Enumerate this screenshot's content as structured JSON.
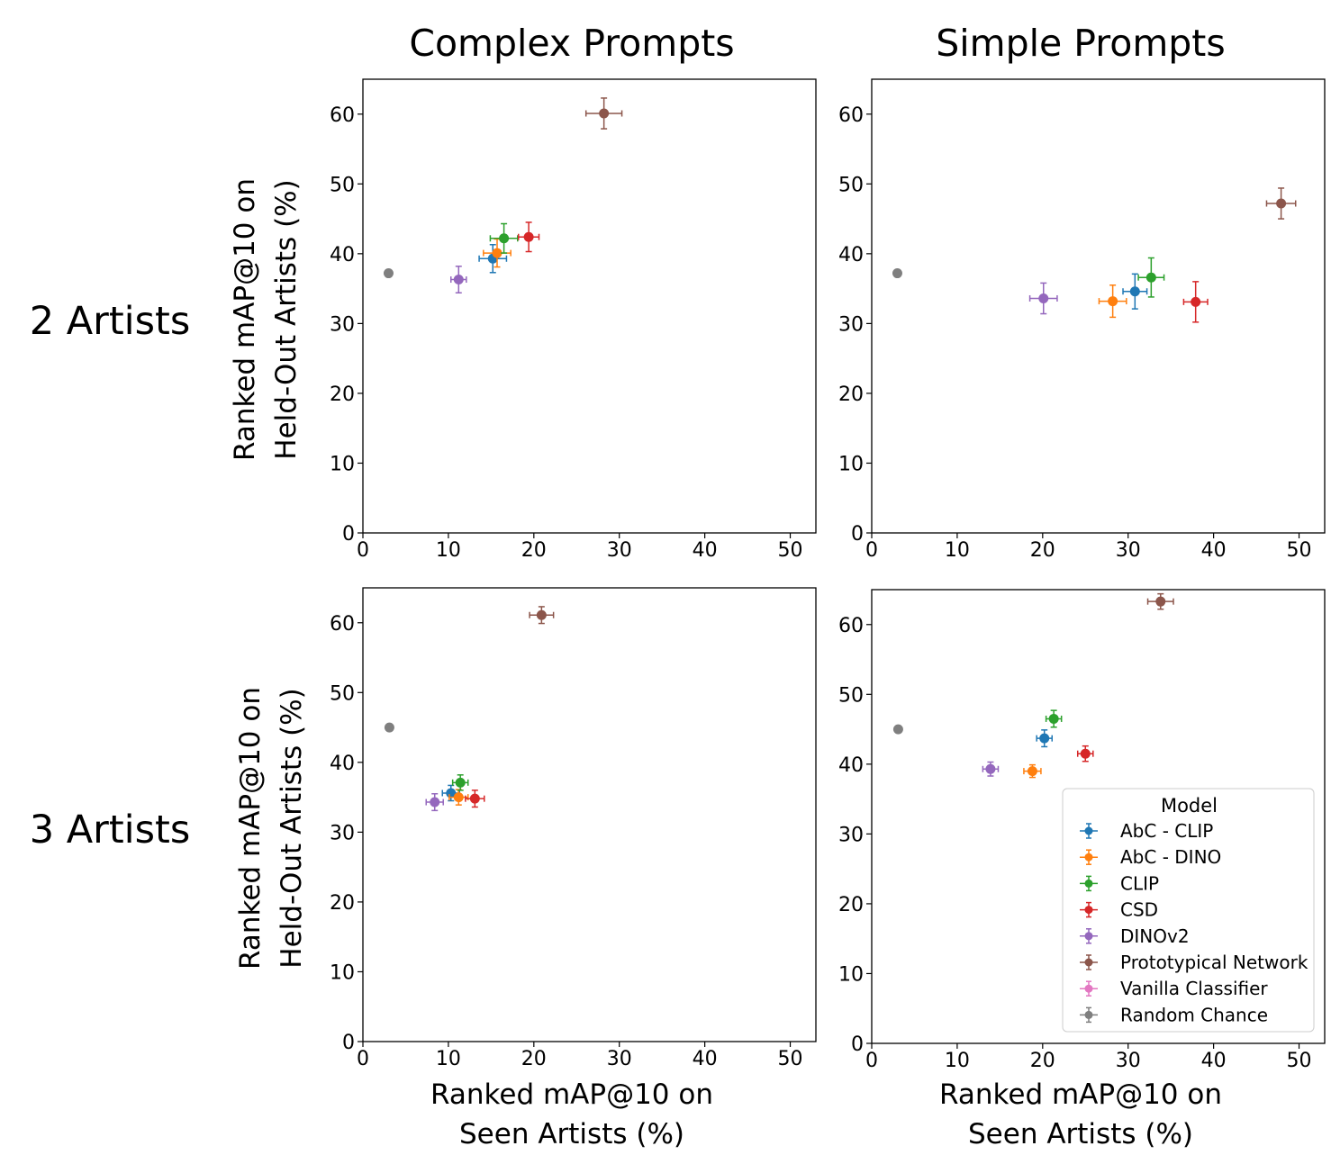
{
  "column_titles": [
    "Complex Prompts",
    "Simple Prompts"
  ],
  "row_labels": [
    "2 Artists",
    "3 Artists"
  ],
  "ylabel_lines": [
    "Ranked mAP@10 on",
    "Held-Out Artists (%)"
  ],
  "xlabel_lines": [
    "Ranked mAP@10 on",
    "Seen Artists (%)"
  ],
  "legend": {
    "title": "Model",
    "entries": [
      "AbC - CLIP",
      "AbC - DINO",
      "CLIP",
      "CSD",
      "DINOv2",
      "Prototypical Network",
      "Vanilla Classifier",
      "Random Chance"
    ]
  },
  "colors": {
    "AbC - CLIP": "#1f77b4",
    "AbC - DINO": "#ff7f0e",
    "CLIP": "#2ca02c",
    "CSD": "#d62728",
    "DINOv2": "#9467bd",
    "Prototypical Network": "#8c564b",
    "Vanilla Classifier": "#e377c2",
    "Random Chance": "#7f7f7f"
  },
  "chart_data": [
    {
      "type": "scatter",
      "panel": "2 Artists / Complex Prompts",
      "xlim": [
        0,
        53
      ],
      "ylim": [
        0,
        65
      ],
      "xticks": [
        0,
        10,
        20,
        30,
        40,
        50
      ],
      "yticks": [
        0,
        10,
        20,
        30,
        40,
        50,
        60
      ],
      "grid": false,
      "points": [
        {
          "model": "AbC - CLIP",
          "x": 15.2,
          "y": 39.3,
          "xerr": 1.6,
          "yerr": 2.0
        },
        {
          "model": "AbC - DINO",
          "x": 15.7,
          "y": 40.1,
          "xerr": 1.6,
          "yerr": 2.0
        },
        {
          "model": "CLIP",
          "x": 16.5,
          "y": 42.2,
          "xerr": 1.6,
          "yerr": 2.1
        },
        {
          "model": "CSD",
          "x": 19.4,
          "y": 42.4,
          "xerr": 1.2,
          "yerr": 2.1
        },
        {
          "model": "DINOv2",
          "x": 11.2,
          "y": 36.3,
          "xerr": 0.9,
          "yerr": 1.9
        },
        {
          "model": "Prototypical Network",
          "x": 28.2,
          "y": 60.1,
          "xerr": 2.1,
          "yerr": 2.2
        },
        {
          "model": "Random Chance",
          "x": 3.0,
          "y": 37.2,
          "xerr": 0,
          "yerr": 0
        }
      ]
    },
    {
      "type": "scatter",
      "panel": "2 Artists / Simple Prompts",
      "xlim": [
        0,
        53
      ],
      "ylim": [
        0,
        65
      ],
      "xticks": [
        0,
        10,
        20,
        30,
        40,
        50
      ],
      "yticks": [
        0,
        10,
        20,
        30,
        40,
        50,
        60
      ],
      "grid": false,
      "points": [
        {
          "model": "AbC - CLIP",
          "x": 30.8,
          "y": 34.6,
          "xerr": 1.4,
          "yerr": 2.5
        },
        {
          "model": "AbC - DINO",
          "x": 28.2,
          "y": 33.2,
          "xerr": 1.6,
          "yerr": 2.3
        },
        {
          "model": "CLIP",
          "x": 32.7,
          "y": 36.6,
          "xerr": 1.5,
          "yerr": 2.8
        },
        {
          "model": "CSD",
          "x": 37.9,
          "y": 33.1,
          "xerr": 1.4,
          "yerr": 2.9
        },
        {
          "model": "DINOv2",
          "x": 20.1,
          "y": 33.6,
          "xerr": 1.6,
          "yerr": 2.2
        },
        {
          "model": "Prototypical Network",
          "x": 47.9,
          "y": 47.2,
          "xerr": 1.7,
          "yerr": 2.2
        },
        {
          "model": "Random Chance",
          "x": 3.0,
          "y": 37.2,
          "xerr": 0,
          "yerr": 0
        }
      ]
    },
    {
      "type": "scatter",
      "panel": "3 Artists / Complex Prompts",
      "xlim": [
        0,
        53
      ],
      "ylim": [
        0,
        65
      ],
      "xticks": [
        0,
        10,
        20,
        30,
        40,
        50
      ],
      "yticks": [
        0,
        10,
        20,
        30,
        40,
        50,
        60
      ],
      "grid": false,
      "points": [
        {
          "model": "AbC - CLIP",
          "x": 10.3,
          "y": 35.6,
          "xerr": 1.0,
          "yerr": 1.1
        },
        {
          "model": "AbC - DINO",
          "x": 11.2,
          "y": 35.0,
          "xerr": 1.1,
          "yerr": 1.1
        },
        {
          "model": "CLIP",
          "x": 11.4,
          "y": 37.1,
          "xerr": 0.9,
          "yerr": 1.1
        },
        {
          "model": "CSD",
          "x": 13.1,
          "y": 34.8,
          "xerr": 1.1,
          "yerr": 1.2
        },
        {
          "model": "DINOv2",
          "x": 8.4,
          "y": 34.3,
          "xerr": 1.0,
          "yerr": 1.2
        },
        {
          "model": "Prototypical Network",
          "x": 20.9,
          "y": 61.1,
          "xerr": 1.4,
          "yerr": 1.2
        },
        {
          "model": "Random Chance",
          "x": 3.1,
          "y": 45.0,
          "xerr": 0,
          "yerr": 0
        }
      ]
    },
    {
      "type": "scatter",
      "panel": "3 Artists / Simple Prompts",
      "xlim": [
        0,
        53
      ],
      "ylim": [
        0,
        65
      ],
      "xticks": [
        0,
        10,
        20,
        30,
        40,
        50
      ],
      "yticks": [
        0,
        10,
        20,
        30,
        40,
        50,
        60
      ],
      "grid": false,
      "legend_position": "lower right",
      "points": [
        {
          "model": "AbC - CLIP",
          "x": 20.2,
          "y": 43.7,
          "xerr": 0.9,
          "yerr": 1.2
        },
        {
          "model": "AbC - DINO",
          "x": 18.8,
          "y": 39.0,
          "xerr": 1.0,
          "yerr": 0.9
        },
        {
          "model": "CLIP",
          "x": 21.3,
          "y": 46.5,
          "xerr": 0.9,
          "yerr": 1.2
        },
        {
          "model": "CSD",
          "x": 25.0,
          "y": 41.5,
          "xerr": 0.9,
          "yerr": 1.1
        },
        {
          "model": "DINOv2",
          "x": 13.9,
          "y": 39.3,
          "xerr": 0.9,
          "yerr": 1.0
        },
        {
          "model": "Prototypical Network",
          "x": 33.8,
          "y": 63.3,
          "xerr": 1.5,
          "yerr": 1.1
        },
        {
          "model": "Random Chance",
          "x": 3.1,
          "y": 45.0,
          "xerr": 0,
          "yerr": 0
        }
      ]
    }
  ]
}
